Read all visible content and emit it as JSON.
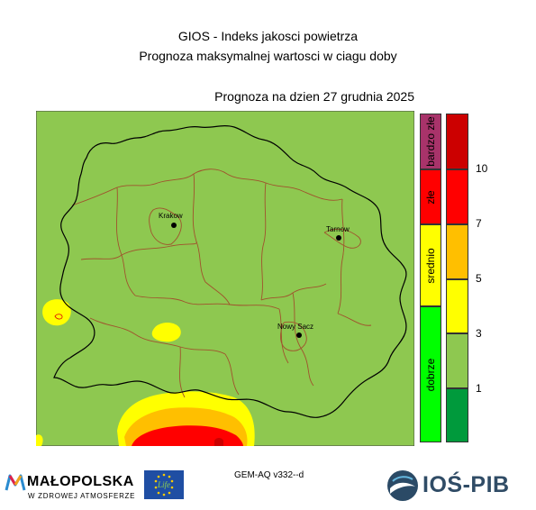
{
  "header": {
    "title": "GIOS - Indeks jakosci powietrza",
    "subtitle": "Prognoza maksymalnej wartosci w ciagu doby",
    "forecast_date": "Prognoza na dzien  27 grudnia 2025"
  },
  "map": {
    "cities": [
      {
        "name": "Krakow"
      },
      {
        "name": "Tarnow"
      },
      {
        "name": "Nowy Sacz"
      }
    ]
  },
  "legend": {
    "categories": [
      {
        "label": "bardzo złe",
        "color": "#a8336a"
      },
      {
        "label": "złe",
        "color": "#ff0000"
      },
      {
        "label": "srednio",
        "color": "#ffff00"
      },
      {
        "label": "dobrze",
        "color": "#00ff00"
      }
    ],
    "scale_colors": [
      "#cc0000",
      "#ff0000",
      "#ffbf00",
      "#ffff00",
      "#8ec850",
      "#009a3c"
    ],
    "scale_ticks": [
      "10",
      "7",
      "5",
      "3",
      "1"
    ]
  },
  "footer": {
    "model": "GEM-AQ v332--d",
    "malopolska_name": "MAŁOPOLSKA",
    "malopolska_tagline": "W ZDROWEJ ATMOSFERZE",
    "eu_logo_text": "Life",
    "ios_text": "IOŚ-PIB"
  },
  "colors": {
    "map_background": "#8ec850",
    "region_border": "#000000",
    "district_border": "#a0522d"
  }
}
